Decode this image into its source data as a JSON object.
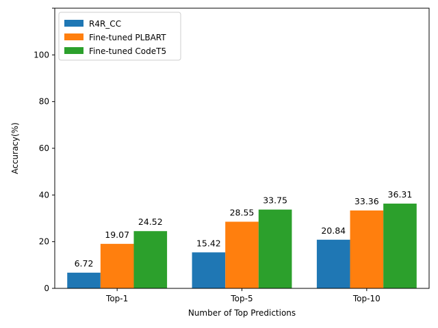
{
  "chart_data": {
    "type": "bar",
    "title": "",
    "xlabel": "Number of Top Predictions",
    "ylabel": "Accuracy(%)",
    "categories": [
      "Top-1",
      "Top-5",
      "Top-10"
    ],
    "series": [
      {
        "name": "R4R_CC",
        "values": [
          6.72,
          15.42,
          20.84
        ],
        "labels": [
          "6.72",
          "15.42",
          "20.84"
        ],
        "color": "#1f77b4"
      },
      {
        "name": "Fine-tuned PLBART",
        "values": [
          19.07,
          28.55,
          33.36
        ],
        "labels": [
          "19.07",
          "28.55",
          "33.36"
        ],
        "color": "#ff7f0e"
      },
      {
        "name": "Fine-tuned CodeT5",
        "values": [
          24.52,
          33.75,
          36.31
        ],
        "labels": [
          "24.52",
          "33.75",
          "36.31"
        ],
        "color": "#2ca02c"
      }
    ],
    "ylim": [
      0,
      120
    ],
    "yticks": [
      0,
      20,
      40,
      60,
      80,
      100,
      120
    ],
    "ytick_labels": [
      "0",
      "20",
      "40",
      "60",
      "80",
      "100",
      ""
    ],
    "grid": false,
    "legend": "top-left"
  }
}
